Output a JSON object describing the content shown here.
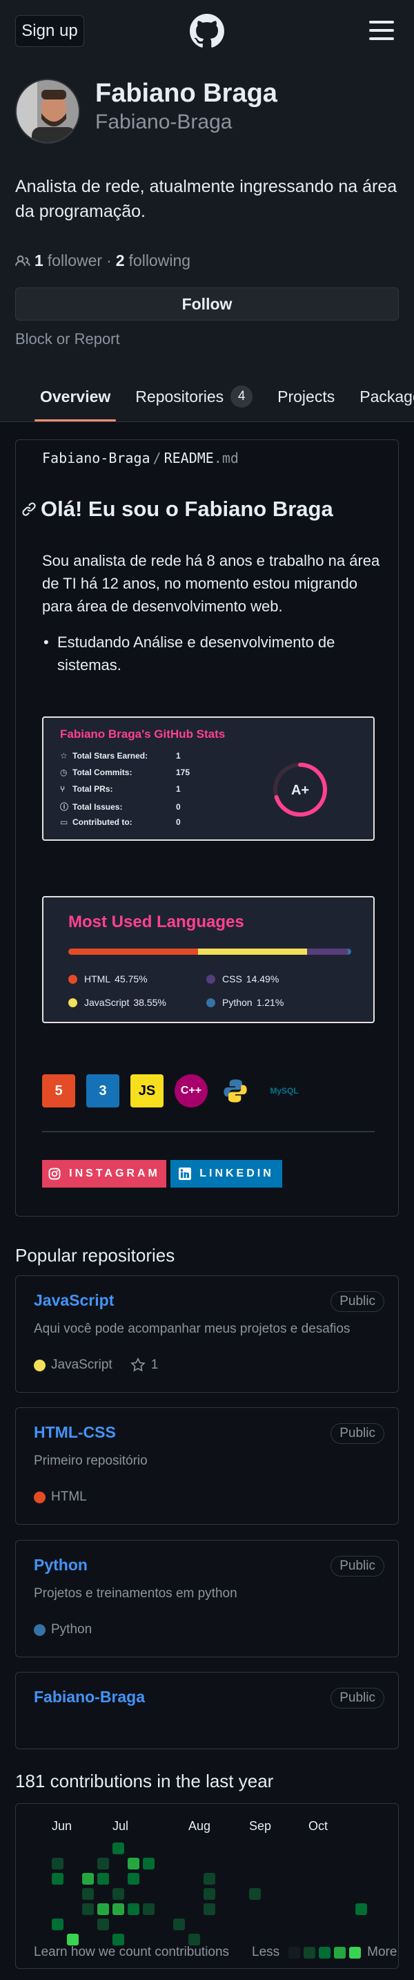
{
  "header": {
    "signup_label": "Sign up",
    "logo_icon": "github-octocat-icon",
    "menu_icon": "hamburger-icon"
  },
  "profile": {
    "name": "Fabiano Braga",
    "login": "Fabiano-Braga",
    "bio": "Analista de rede, atualmente ingressando na área da programação.",
    "followers_count": "1",
    "followers_label": "follower",
    "separator": "·",
    "following_count": "2",
    "following_label": "following",
    "follow_label": "Follow",
    "block_report_label": "Block or Report"
  },
  "tabs": [
    {
      "label": "Overview",
      "active": true
    },
    {
      "label": "Repositories",
      "counter": "4"
    },
    {
      "label": "Projects"
    },
    {
      "label": "Packages"
    }
  ],
  "readme": {
    "path_user": "Fabiano-Braga",
    "path_sep": "/",
    "path_file": "README",
    "path_ext": ".md",
    "heading": "Olá! Eu sou o Fabiano Braga",
    "paragraph": "Sou analista de rede há 8 anos e trabalho na área de TI há 12 anos, no momento estou migrando para área de desenvolvimento web.",
    "bullet": "Estudando Análise e desenvolvimento de sistemas.",
    "stats_card": {
      "title": "Fabiano Braga's GitHub Stats",
      "rows": [
        {
          "label": "Total Stars Earned:",
          "value": "1",
          "icon": "star-icon"
        },
        {
          "label": "Total Commits:",
          "value": "175",
          "icon": "history-icon"
        },
        {
          "label": "Total PRs:",
          "value": "1",
          "icon": "pull-request-icon"
        },
        {
          "label": "Total Issues:",
          "value": "0",
          "icon": "issue-icon"
        },
        {
          "label": "Contributed to:",
          "value": "0",
          "icon": "repo-icon"
        }
      ],
      "grade": "A+",
      "grade_fraction": 0.7,
      "accent": "#fe428e"
    },
    "lang_card": {
      "title": "Most Used Languages",
      "languages": [
        {
          "name": "HTML",
          "percent": "45.75%",
          "value": 45.75,
          "color": "#e34c26"
        },
        {
          "name": "JavaScript",
          "percent": "38.55%",
          "value": 38.55,
          "color": "#f1e05a"
        },
        {
          "name": "CSS",
          "percent": "14.49%",
          "value": 14.49,
          "color": "#563d7c"
        },
        {
          "name": "Python",
          "percent": "1.21%",
          "value": 1.21,
          "color": "#3572A5"
        }
      ]
    },
    "tech_icons": [
      {
        "name": "html5-icon",
        "label": "5",
        "bg": "#e34c26",
        "color": "#ffffff"
      },
      {
        "name": "css3-icon",
        "label": "3",
        "bg": "#1572b6",
        "color": "#ffffff"
      },
      {
        "name": "javascript-icon",
        "label": "JS",
        "bg": "#f7df1e",
        "color": "#000000"
      },
      {
        "name": "cpp-icon",
        "label": "C++",
        "bg": "#a8006b",
        "color": "#ffffff"
      },
      {
        "name": "python-icon",
        "label": "",
        "bg": "transparent",
        "color": "#ffd43b"
      },
      {
        "name": "mysql-icon",
        "label": "MySQL",
        "bg": "transparent",
        "color": "#00758f"
      }
    ],
    "social": {
      "instagram_label": "INSTAGRAM",
      "linkedin_label": "LINKEDIN"
    }
  },
  "popular": {
    "title": "Popular repositories",
    "repos": [
      {
        "name": "JavaScript",
        "visibility": "Public",
        "description": "Aqui você pode acompanhar meus projetos e desafios",
        "language": "JavaScript",
        "language_color": "#f1e05a",
        "stars": "1"
      },
      {
        "name": "HTML-CSS",
        "visibility": "Public",
        "description": "Primeiro repositório",
        "language": "HTML",
        "language_color": "#e34c26"
      },
      {
        "name": "Python",
        "visibility": "Public",
        "description": "Projetos e treinamentos em python",
        "language": "Python",
        "language_color": "#3572A5"
      },
      {
        "name": "Fabiano-Braga",
        "visibility": "Public"
      }
    ]
  },
  "contributions": {
    "title": "181 contributions in the last year",
    "months": [
      "Jun",
      "Jul",
      "Aug",
      "Sep",
      "Oct"
    ],
    "footer": "Learn how we count contributions",
    "less_label": "Less",
    "more_label": "More",
    "colors": [
      "#161b22",
      "#0e4429",
      "#006d32",
      "#26a641",
      "#39d353"
    ]
  }
}
